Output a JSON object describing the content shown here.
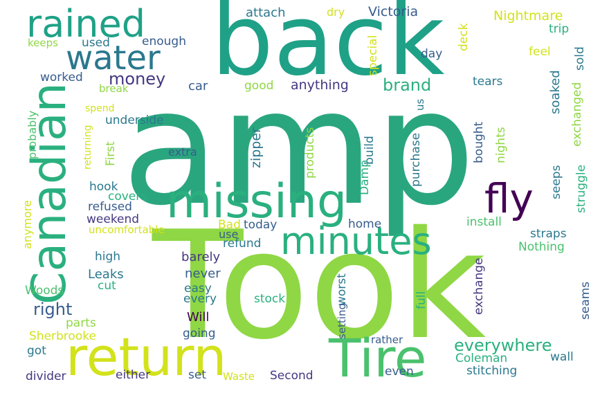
{
  "words": {
    "amp": "amp",
    "took": "Took",
    "back": "back",
    "return": "return",
    "tire": "Tire",
    "missing": "missing",
    "canadian": "Canadian",
    "minutes": "minutes",
    "rained": "rained",
    "water": "water",
    "fly": "fly",
    "brand": "brand",
    "everywhere": "everywhere",
    "money": "money",
    "victoria": "Victoria",
    "nightmare": "Nightmare",
    "attach": "attach",
    "dry": "dry",
    "used": "used",
    "enough": "enough",
    "keeps": "keeps",
    "worked": "worked",
    "car": "car",
    "good": "good",
    "anything": "anything",
    "tears": "tears",
    "feel": "feel",
    "trip": "trip",
    "day": "day",
    "deck": "deck",
    "special": "special",
    "sold": "sold",
    "soaked": "soaked",
    "exchanged": "exchanged",
    "struggle": "struggle",
    "seeps": "seeps",
    "nights": "nights",
    "bought": "bought",
    "us": "us",
    "break": "break",
    "spend": "spend",
    "underside": "underside",
    "first": "First",
    "returning": "returning",
    "probably": "probably",
    "extra": "extra",
    "zipper": "zipper",
    "build": "build",
    "damp": "Damp",
    "products": "products",
    "purchase": "purchase",
    "hook": "hook",
    "covers": "covers",
    "refused": "refused",
    "weekend": "weekend",
    "uncomfortable": "uncomfortable",
    "anymore": "anymore",
    "bad": "Bad",
    "today": "today",
    "home": "home",
    "install": "install",
    "straps": "straps",
    "use": "use",
    "refund": "refund",
    "nothing": "Nothing",
    "high": "high",
    "barely": "barely",
    "leaks": "Leaks",
    "never": "never",
    "cut": "cut",
    "easy": "easy",
    "woods": "Woods",
    "every": "every",
    "stock": "stock",
    "worst": "worst",
    "full": "full",
    "exchange": "exchange",
    "seams": "seams",
    "right": "right",
    "will": "Will",
    "parts": "parts",
    "setting": "setting",
    "going": "going",
    "sherbrooke": "Sherbrooke",
    "rather": "rather",
    "got": "got",
    "coleman": "Coleman",
    "wall": "wall",
    "stitching": "stitching",
    "divider": "divider",
    "either": "either",
    "set": "set",
    "waste": "Waste",
    "second": "Second",
    "even": "even"
  },
  "palette": {
    "teal": "#1fa187",
    "green": "#2ab07f",
    "lime": "#8fd744",
    "yellow": "#d2e21b",
    "blue": "#365c8d",
    "indigo": "#453781",
    "purple": "#440154",
    "cyan": "#277f8e",
    "lightgreen": "#4ac16d"
  }
}
